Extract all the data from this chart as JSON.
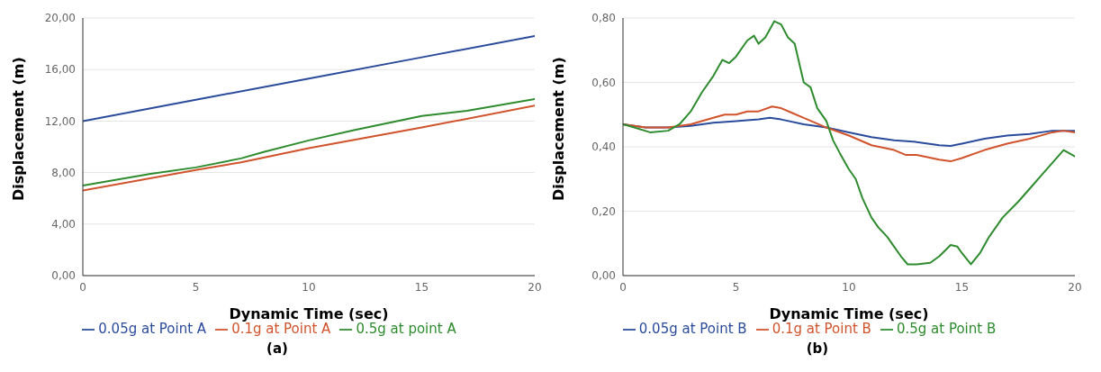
{
  "chart_data": [
    {
      "type": "line",
      "xlabel": "Dynamic  Time (sec)",
      "ylabel": "Displacement (m)",
      "xlim": [
        0,
        20
      ],
      "xticks": [
        0,
        5,
        10,
        15,
        20
      ],
      "ylim": [
        0,
        20
      ],
      "yticks": [
        {
          "value": 0,
          "label": "0,00"
        },
        {
          "value": 4,
          "label": "4,00"
        },
        {
          "value": 8,
          "label": "8,00"
        },
        {
          "value": 12,
          "label": "12,00"
        },
        {
          "value": 16,
          "label": "16,00"
        },
        {
          "value": 20,
          "label": "20,00"
        }
      ],
      "grid": "y",
      "legend": "bottom",
      "marker": "none",
      "line_style": "solid",
      "annotations": [
        "(a)"
      ],
      "series": [
        {
          "name": "0.05g at Point A",
          "color": "#2a4b9b",
          "x": [
            0,
            5,
            10,
            15,
            20
          ],
          "values": [
            12.0,
            13.65,
            15.3,
            16.95,
            18.6
          ]
        },
        {
          "name": "0.1g at Point A",
          "color": "#d0532c",
          "x": [
            0,
            5,
            7,
            10,
            15,
            20
          ],
          "values": [
            6.6,
            8.2,
            8.8,
            9.9,
            11.5,
            13.2
          ]
        },
        {
          "name": "0.5g at point A",
          "color": "#2e8b2e",
          "x": [
            0,
            3,
            5,
            7,
            8,
            10,
            12,
            15,
            17,
            20
          ],
          "values": [
            7.0,
            7.9,
            8.4,
            9.1,
            9.6,
            10.5,
            11.3,
            12.4,
            12.8,
            13.7
          ]
        }
      ]
    },
    {
      "type": "line",
      "xlabel": "Dynamic  Time (sec)",
      "ylabel": "Displacement (m)",
      "xlim": [
        0,
        20
      ],
      "xticks": [
        0,
        5,
        10,
        15,
        20
      ],
      "ylim": [
        0,
        0.8
      ],
      "yticks": [
        {
          "value": 0,
          "label": "0,00"
        },
        {
          "value": 0.2,
          "label": "0,20"
        },
        {
          "value": 0.4,
          "label": "0,40"
        },
        {
          "value": 0.6,
          "label": "0,60"
        },
        {
          "value": 0.8,
          "label": "0,80"
        }
      ],
      "grid": "y",
      "legend": "bottom",
      "marker": "none",
      "line_style": "solid",
      "annotations": [
        "(b)"
      ],
      "series": [
        {
          "name": "0.05g at Point B",
          "color": "#2a4b9b",
          "x": [
            0,
            1,
            2,
            3,
            4,
            5,
            6,
            6.5,
            7,
            8,
            9,
            10,
            11,
            12,
            13,
            14,
            14.5,
            15,
            16,
            17,
            18,
            19,
            20
          ],
          "values": [
            0.47,
            0.46,
            0.46,
            0.465,
            0.475,
            0.48,
            0.485,
            0.49,
            0.485,
            0.47,
            0.46,
            0.445,
            0.43,
            0.42,
            0.415,
            0.405,
            0.403,
            0.41,
            0.425,
            0.435,
            0.44,
            0.45,
            0.45
          ]
        },
        {
          "name": "0.1g at Point B",
          "color": "#d0532c",
          "x": [
            0,
            1,
            2,
            3,
            4,
            4.5,
            5,
            5.5,
            6,
            6.6,
            7,
            7.5,
            8,
            9,
            10,
            11,
            12,
            12.5,
            13,
            14,
            14.5,
            15,
            16,
            17,
            18,
            19,
            19.5,
            20
          ],
          "values": [
            0.47,
            0.46,
            0.46,
            0.47,
            0.49,
            0.5,
            0.5,
            0.51,
            0.51,
            0.525,
            0.52,
            0.505,
            0.49,
            0.46,
            0.435,
            0.405,
            0.39,
            0.375,
            0.375,
            0.36,
            0.355,
            0.365,
            0.39,
            0.41,
            0.425,
            0.445,
            0.45,
            0.445
          ]
        },
        {
          "name": "0.5g at Point B",
          "color": "#2e8b2e",
          "x": [
            0,
            0.5,
            1.2,
            2,
            2.5,
            3,
            3.5,
            4,
            4.4,
            4.7,
            5,
            5.5,
            5.8,
            6,
            6.3,
            6.7,
            7,
            7.3,
            7.6,
            8,
            8.3,
            8.6,
            9,
            9.3,
            9.6,
            10,
            10.3,
            10.6,
            11,
            11.3,
            11.7,
            12,
            12.3,
            12.6,
            13,
            13.6,
            14,
            14.5,
            14.8,
            15,
            15.4,
            15.8,
            16.2,
            16.8,
            17.5,
            18,
            18.5,
            19,
            19.5,
            20
          ],
          "values": [
            0.47,
            0.46,
            0.445,
            0.45,
            0.47,
            0.51,
            0.57,
            0.62,
            0.67,
            0.66,
            0.68,
            0.73,
            0.745,
            0.72,
            0.74,
            0.79,
            0.78,
            0.74,
            0.72,
            0.6,
            0.585,
            0.52,
            0.48,
            0.42,
            0.38,
            0.33,
            0.3,
            0.24,
            0.18,
            0.15,
            0.12,
            0.09,
            0.06,
            0.035,
            0.035,
            0.04,
            0.06,
            0.095,
            0.09,
            0.07,
            0.035,
            0.07,
            0.12,
            0.18,
            0.23,
            0.27,
            0.31,
            0.35,
            0.39,
            0.37
          ]
        }
      ]
    }
  ]
}
